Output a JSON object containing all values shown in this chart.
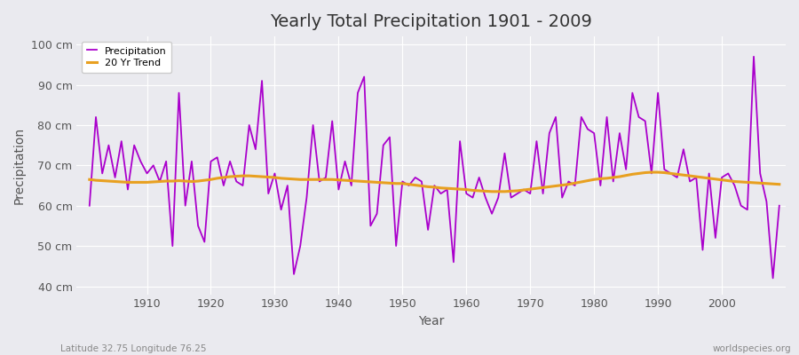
{
  "title": "Yearly Total Precipitation 1901 - 2009",
  "xlabel": "Year",
  "ylabel": "Precipitation",
  "footnote_left": "Latitude 32.75 Longitude 76.25",
  "footnote_right": "worldspecies.org",
  "ylim": [
    38,
    102
  ],
  "yticks": [
    40,
    50,
    60,
    70,
    80,
    90,
    100
  ],
  "ytick_labels": [
    "40 cm",
    "50 cm",
    "60 cm",
    "70 cm",
    "80 cm",
    "90 cm",
    "100 cm"
  ],
  "years": [
    1901,
    1902,
    1903,
    1904,
    1905,
    1906,
    1907,
    1908,
    1909,
    1910,
    1911,
    1912,
    1913,
    1914,
    1915,
    1916,
    1917,
    1918,
    1919,
    1920,
    1921,
    1922,
    1923,
    1924,
    1925,
    1926,
    1927,
    1928,
    1929,
    1930,
    1931,
    1932,
    1933,
    1934,
    1935,
    1936,
    1937,
    1938,
    1939,
    1940,
    1941,
    1942,
    1943,
    1944,
    1945,
    1946,
    1947,
    1948,
    1949,
    1950,
    1951,
    1952,
    1953,
    1954,
    1955,
    1956,
    1957,
    1958,
    1959,
    1960,
    1961,
    1962,
    1963,
    1964,
    1965,
    1966,
    1967,
    1968,
    1969,
    1970,
    1971,
    1972,
    1973,
    1974,
    1975,
    1976,
    1977,
    1978,
    1979,
    1980,
    1981,
    1982,
    1983,
    1984,
    1985,
    1986,
    1987,
    1988,
    1989,
    1990,
    1991,
    1992,
    1993,
    1994,
    1995,
    1996,
    1997,
    1998,
    1999,
    2000,
    2001,
    2002,
    2003,
    2004,
    2005,
    2006,
    2007,
    2008,
    2009
  ],
  "precipitation": [
    60,
    82,
    68,
    75,
    67,
    76,
    64,
    75,
    71,
    68,
    70,
    66,
    71,
    50,
    88,
    60,
    71,
    55,
    51,
    71,
    72,
    65,
    71,
    66,
    65,
    80,
    74,
    91,
    63,
    68,
    59,
    65,
    43,
    50,
    62,
    80,
    66,
    67,
    81,
    64,
    71,
    65,
    88,
    92,
    55,
    58,
    75,
    77,
    50,
    66,
    65,
    67,
    66,
    54,
    65,
    63,
    64,
    46,
    76,
    63,
    62,
    67,
    62,
    58,
    62,
    73,
    62,
    63,
    64,
    63,
    76,
    63,
    78,
    82,
    62,
    66,
    65,
    82,
    79,
    78,
    65,
    82,
    66,
    78,
    69,
    88,
    82,
    81,
    68,
    88,
    69,
    68,
    67,
    74,
    66,
    67,
    49,
    68,
    52,
    67,
    68,
    65,
    60,
    59,
    97,
    68,
    61,
    42,
    60
  ],
  "trend": [
    66.5,
    66.3,
    66.2,
    66.1,
    66.0,
    65.9,
    65.8,
    65.8,
    65.8,
    65.8,
    65.9,
    66.0,
    66.1,
    66.1,
    66.2,
    66.1,
    66.0,
    66.1,
    66.3,
    66.5,
    66.8,
    67.0,
    67.2,
    67.3,
    67.4,
    67.4,
    67.3,
    67.2,
    67.1,
    67.0,
    66.8,
    66.7,
    66.6,
    66.5,
    66.5,
    66.5,
    66.5,
    66.5,
    66.5,
    66.4,
    66.3,
    66.2,
    66.1,
    66.0,
    65.9,
    65.8,
    65.7,
    65.6,
    65.5,
    65.5,
    65.3,
    65.1,
    64.9,
    64.7,
    64.6,
    64.4,
    64.3,
    64.2,
    64.1,
    64.0,
    63.8,
    63.7,
    63.6,
    63.5,
    63.5,
    63.5,
    63.6,
    63.7,
    63.9,
    64.1,
    64.3,
    64.5,
    64.7,
    64.9,
    65.1,
    65.3,
    65.6,
    65.9,
    66.2,
    66.5,
    66.7,
    66.8,
    67.0,
    67.2,
    67.5,
    67.8,
    68.0,
    68.2,
    68.3,
    68.3,
    68.2,
    68.0,
    67.8,
    67.6,
    67.4,
    67.2,
    67.0,
    66.8,
    66.6,
    66.4,
    66.2,
    66.0,
    65.9,
    65.8,
    65.7,
    65.6,
    65.5,
    65.4,
    65.3
  ],
  "precip_color": "#AA00CC",
  "trend_color": "#E8A020",
  "bg_color": "#EAEAEF",
  "grid_color": "#FFFFFF",
  "legend_label_precip": "Precipitation",
  "legend_label_trend": "20 Yr Trend",
  "xticks": [
    1910,
    1920,
    1930,
    1940,
    1950,
    1960,
    1970,
    1980,
    1990,
    2000
  ],
  "xlim": [
    1899,
    2010
  ]
}
